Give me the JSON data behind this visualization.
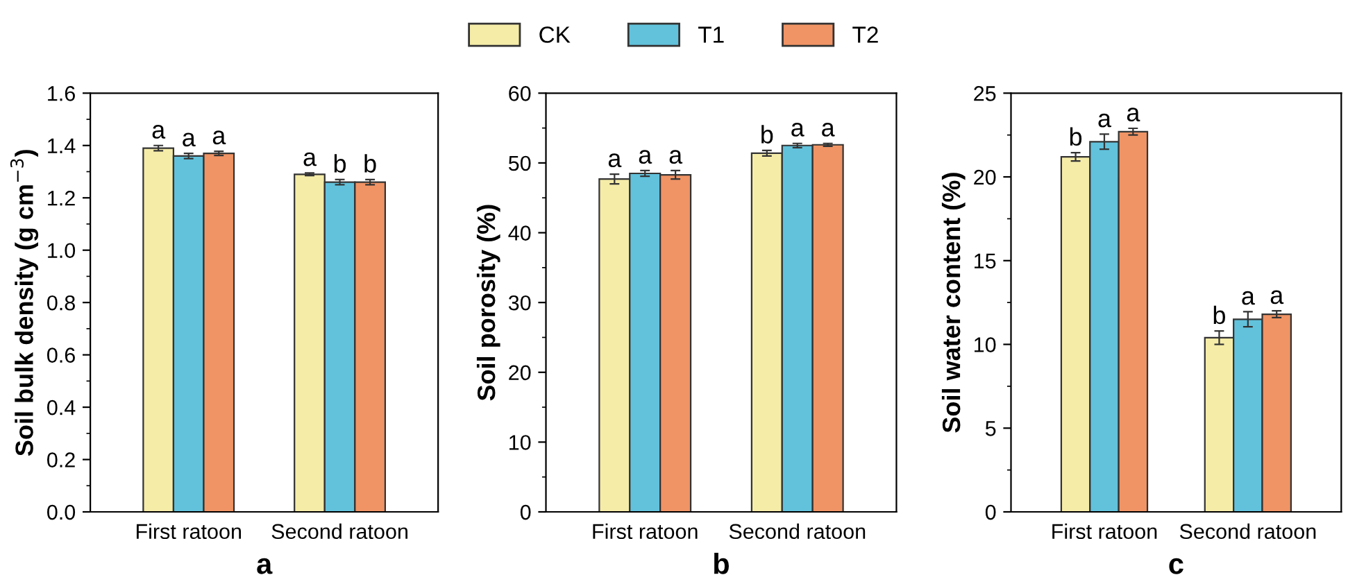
{
  "chart_data": [
    {
      "type": "bar",
      "ylabel": "Soil bulk density (g cm$^{−3}$)",
      "categories": [
        "First ratoon",
        "Second ratoon"
      ],
      "legend": "top",
      "series": [
        {
          "name": "CK",
          "color": "#f5eca8",
          "values": [
            1.39,
            1.29
          ],
          "errors": [
            0.01,
            0.005
          ],
          "value_labels": [
            "a",
            "a"
          ]
        },
        {
          "name": "T1",
          "color": "#62c2dc",
          "values": [
            1.36,
            1.26
          ],
          "errors": [
            0.01,
            0.01
          ],
          "value_labels": [
            "a",
            "b"
          ]
        },
        {
          "name": "T2",
          "color": "#f09465",
          "values": [
            1.37,
            1.26
          ],
          "errors": [
            0.008,
            0.01
          ],
          "value_labels": [
            "a",
            "b"
          ]
        }
      ],
      "ylim": [
        0,
        1.6
      ],
      "yticks": [
        {
          "value": 0,
          "label": "0.0"
        },
        0.2,
        0.4,
        0.6,
        0.8,
        {
          "value": 1,
          "label": "1.0"
        },
        1.2,
        1.4,
        1.6
      ],
      "annotations": [
        "a"
      ]
    },
    {
      "type": "bar",
      "ylabel": "Soil porosity (%)",
      "categories": [
        "First ratoon",
        "Second ratoon"
      ],
      "series": [
        {
          "color": "#f5eca8",
          "values": [
            47.7,
            51.4
          ],
          "errors": [
            0.7,
            0.4
          ],
          "value_labels": [
            "a",
            "b"
          ]
        },
        {
          "color": "#62c2dc",
          "values": [
            48.5,
            52.5
          ],
          "errors": [
            0.4,
            0.3
          ],
          "value_labels": [
            "a",
            "a"
          ]
        },
        {
          "color": "#f09465",
          "values": [
            48.3,
            52.6
          ],
          "errors": [
            0.6,
            0.2
          ],
          "value_labels": [
            "a",
            "a"
          ]
        }
      ],
      "ylim": [
        0,
        60
      ],
      "yticks": [
        0,
        10,
        20,
        30,
        40,
        50,
        60
      ],
      "annotations": [
        "b"
      ]
    },
    {
      "type": "bar",
      "ylabel": "Soil water content (%)",
      "categories": [
        "First ratoon",
        "Second ratoon"
      ],
      "series": [
        {
          "color": "#f5eca8",
          "values": [
            21.2,
            10.4
          ],
          "errors": [
            0.25,
            0.4
          ],
          "value_labels": [
            "b",
            "b"
          ]
        },
        {
          "color": "#62c2dc",
          "values": [
            22.1,
            11.5
          ],
          "errors": [
            0.45,
            0.45
          ],
          "value_labels": [
            "a",
            "a"
          ]
        },
        {
          "color": "#f09465",
          "values": [
            22.7,
            11.8
          ],
          "errors": [
            0.2,
            0.2
          ],
          "value_labels": [
            "a",
            "a"
          ]
        }
      ],
      "ylim": [
        0,
        25
      ],
      "yticks": [
        0,
        5,
        10,
        15,
        20,
        25
      ],
      "annotations": [
        "c"
      ]
    }
  ]
}
